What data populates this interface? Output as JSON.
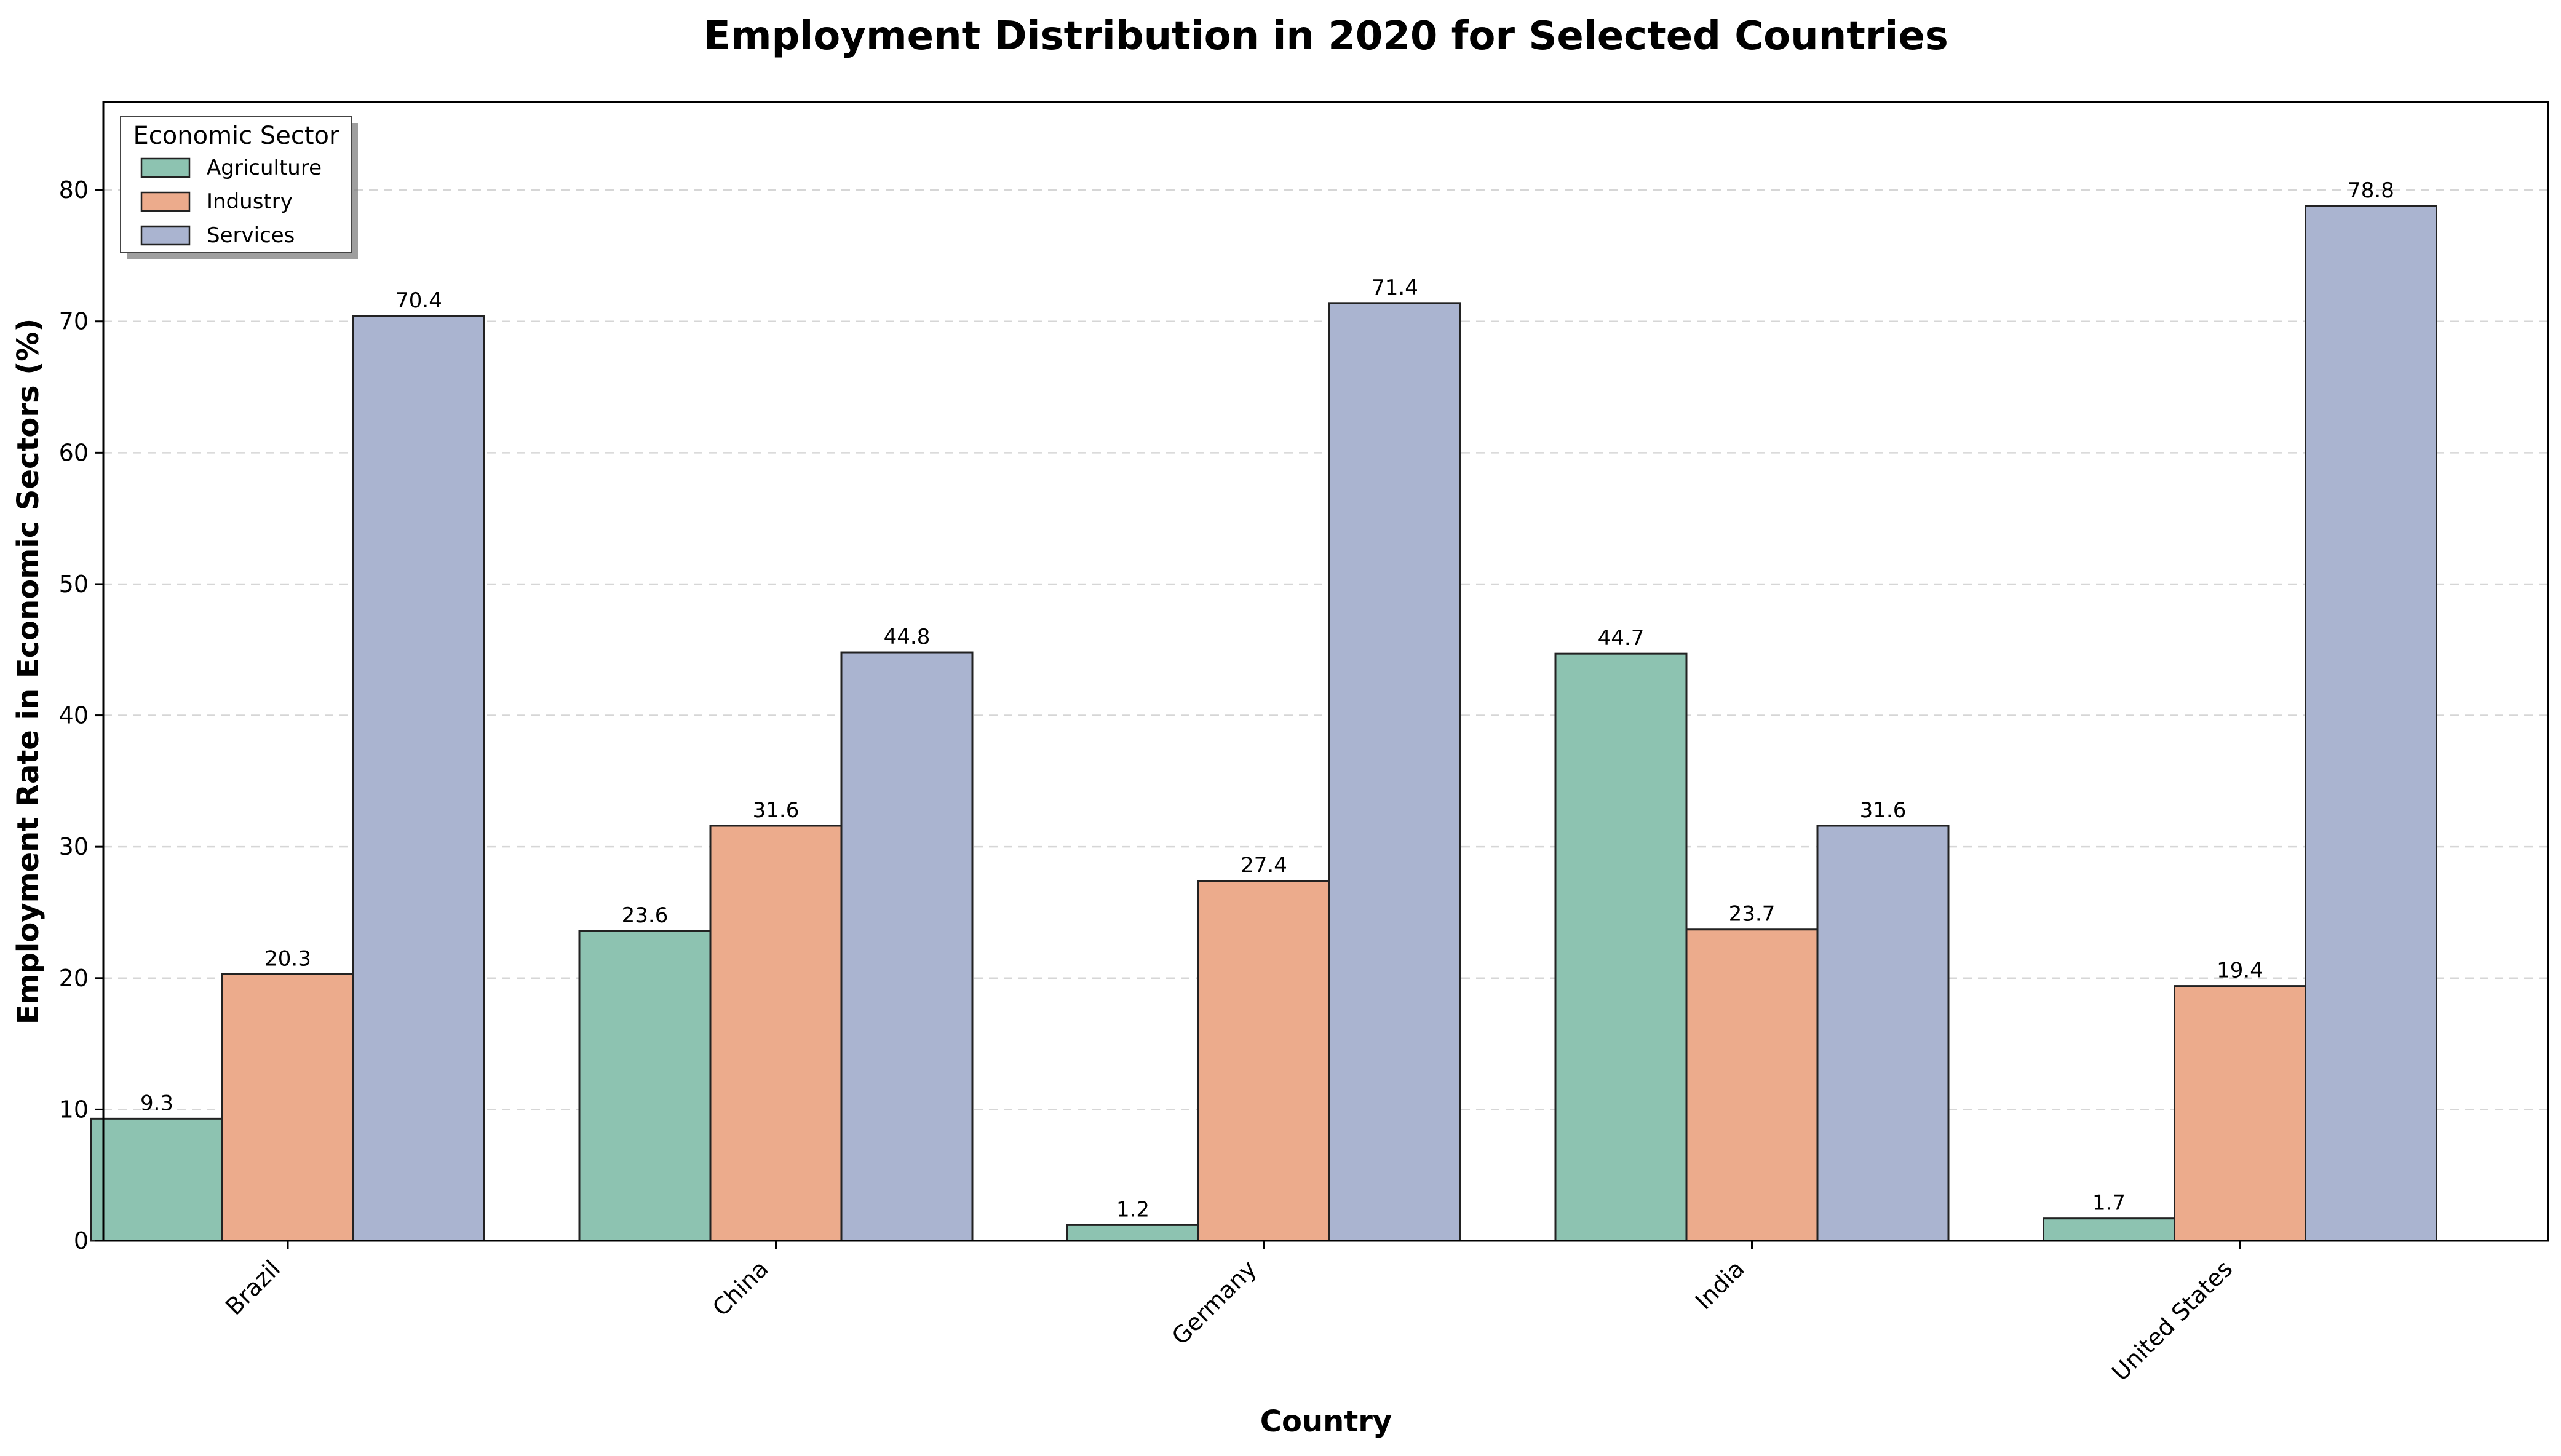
{
  "chart_data": {
    "type": "bar",
    "title": "Employment Distribution in 2020 for Selected Countries",
    "xlabel": "Country",
    "ylabel": "Employment Rate in Economic Sectors (%)",
    "categories": [
      "Brazil",
      "China",
      "Germany",
      "India",
      "United States"
    ],
    "series": [
      {
        "name": "Agriculture",
        "values": [
          9.3,
          23.6,
          1.2,
          44.7,
          1.7
        ],
        "color": "#8dc3b1"
      },
      {
        "name": "Industry",
        "values": [
          20.3,
          31.6,
          27.4,
          23.7,
          19.4
        ],
        "color": "#ecab8c"
      },
      {
        "name": "Services",
        "values": [
          70.4,
          44.8,
          71.4,
          31.6,
          78.8
        ],
        "color": "#aab4d0"
      }
    ],
    "ylim": [
      0,
      86.7
    ],
    "yticks": [
      0,
      10,
      20,
      30,
      40,
      50,
      60,
      70,
      80
    ],
    "grid": "y-dashed",
    "legend": {
      "title": "Economic Sector",
      "placement": "top-left"
    }
  }
}
